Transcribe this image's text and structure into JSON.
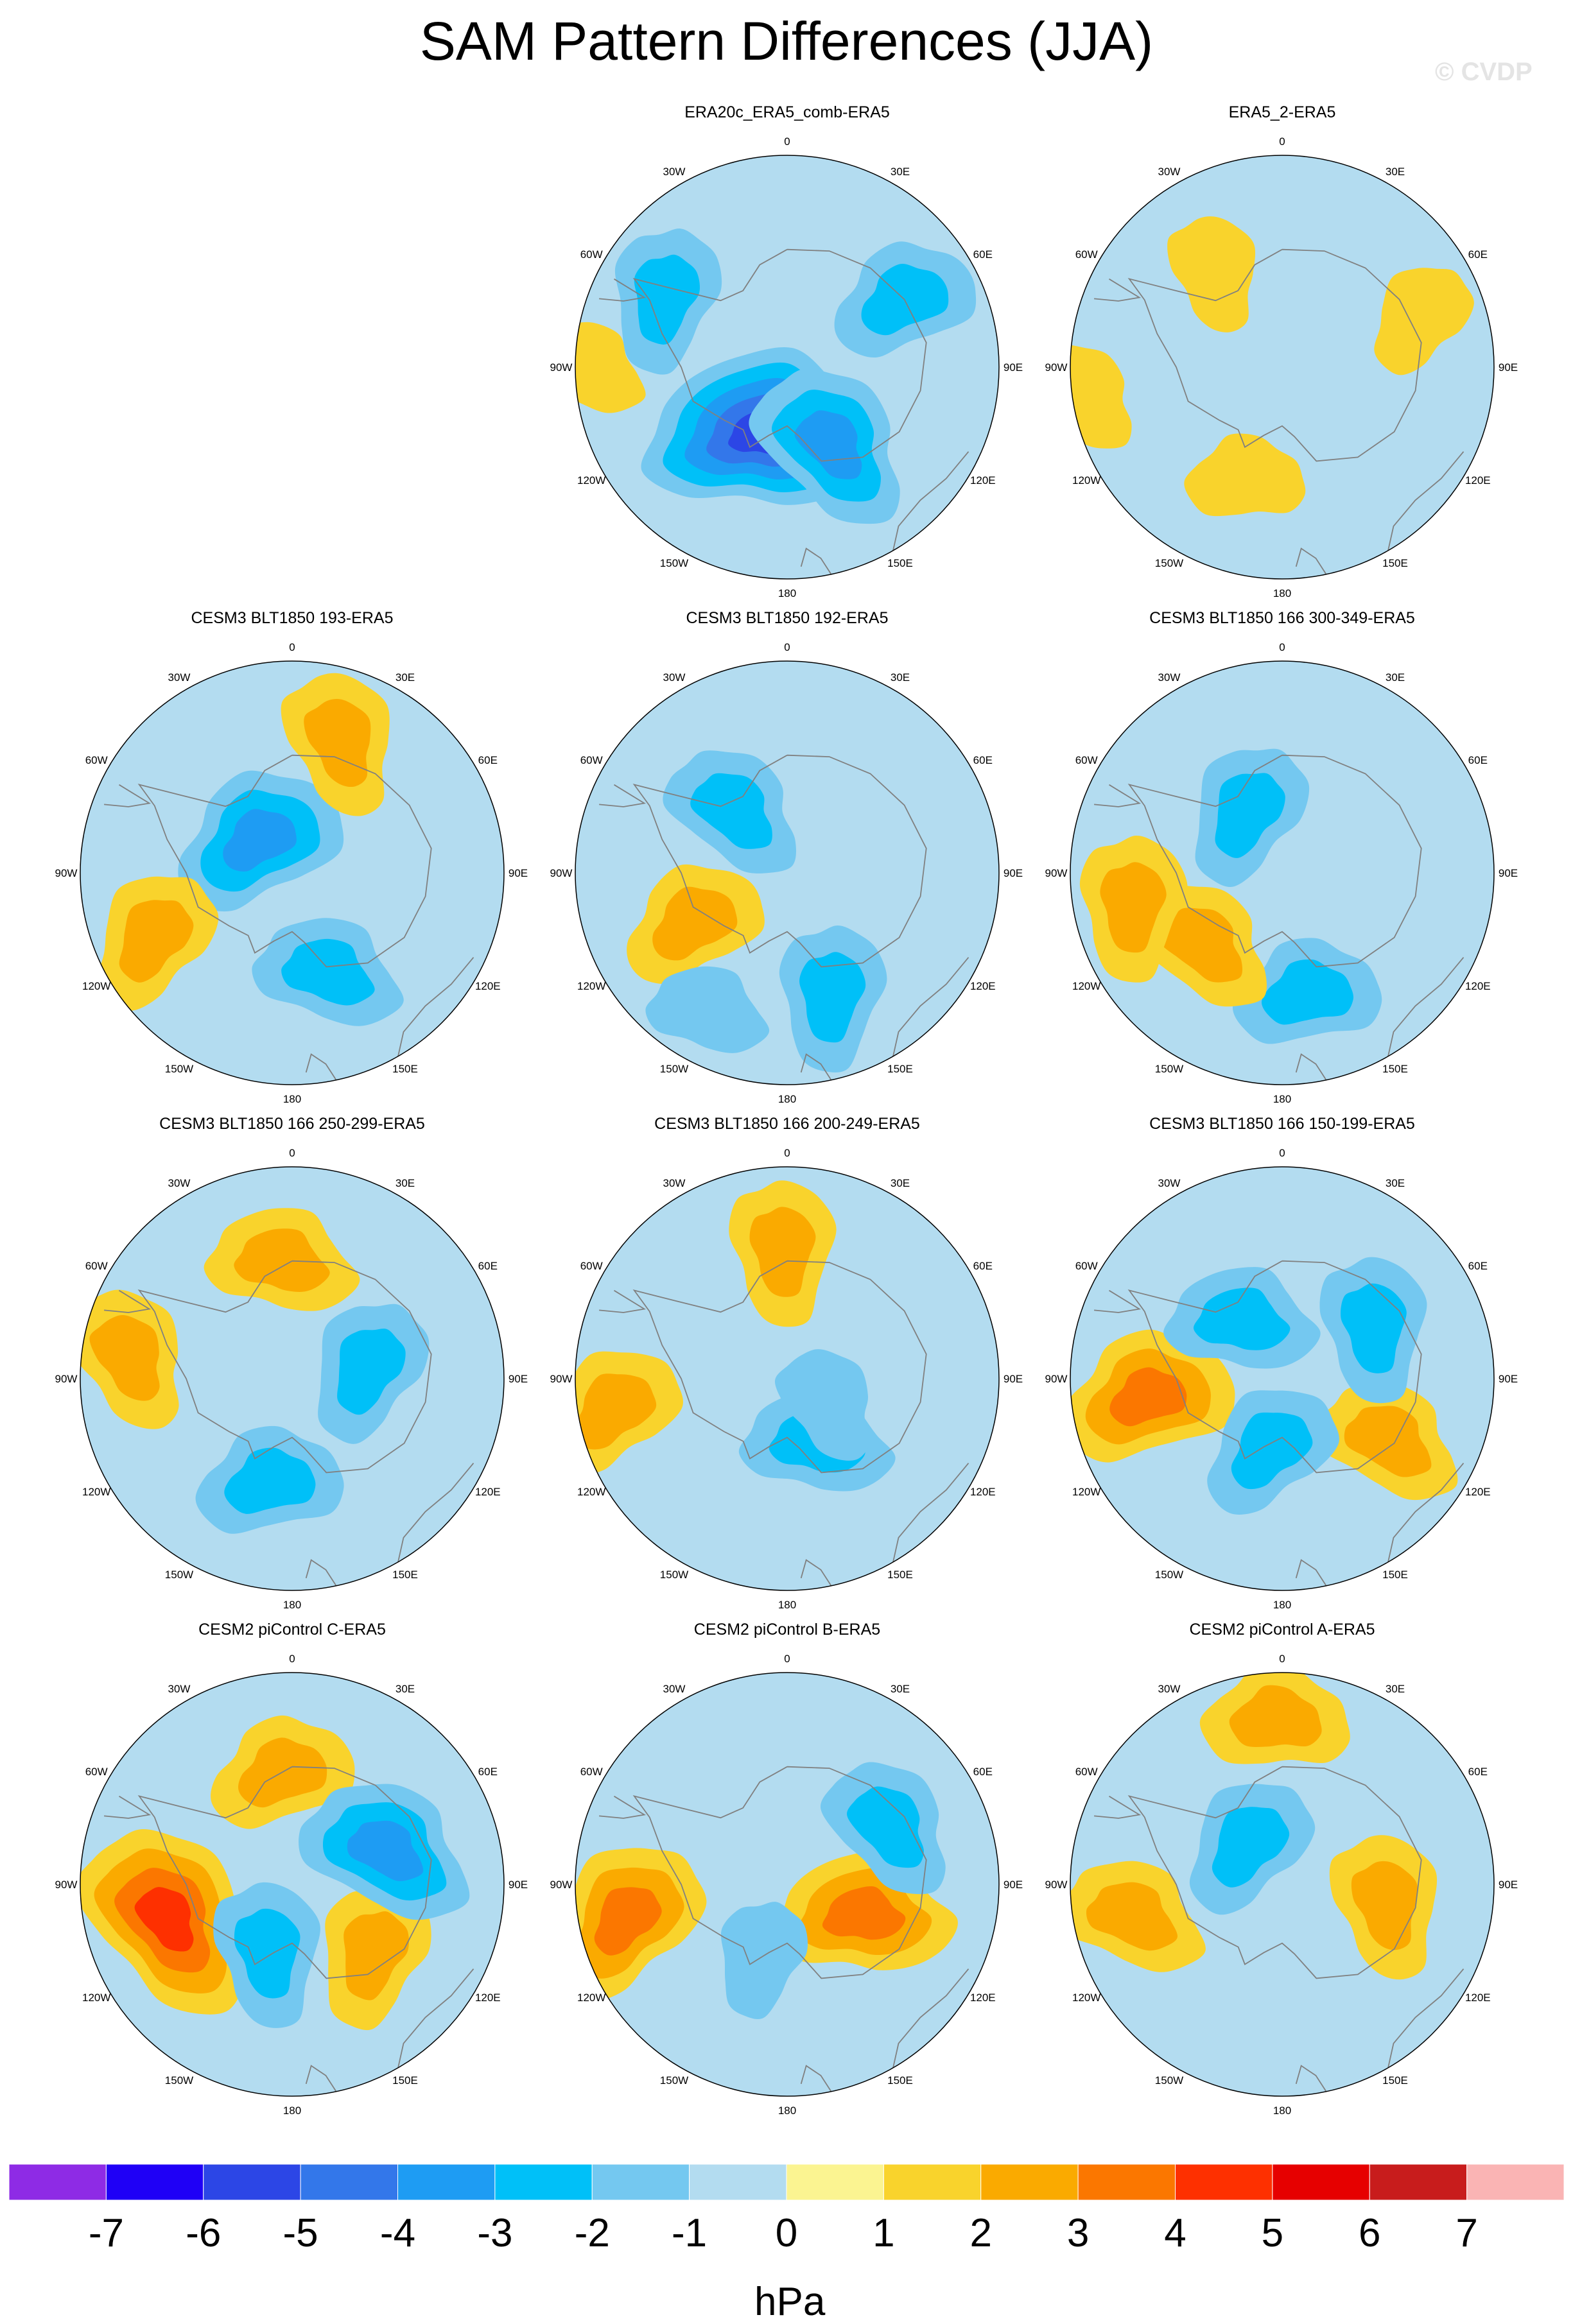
{
  "figure": {
    "title": "SAM Pattern Differences (JJA)",
    "watermark": "© CVDP"
  },
  "map_labels": {
    "lon_0": "0",
    "lon_30e": "30E",
    "lon_60e": "60E",
    "lon_90e": "90E",
    "lon_120e": "120E",
    "lon_150e": "150E",
    "lon_180": "180",
    "lon_150w": "150W",
    "lon_120w": "120W",
    "lon_90w": "90W",
    "lon_60w": "60W",
    "lon_30w": "30W"
  },
  "chart_data": {
    "type": "heatmap",
    "projection": "south polar stereographic",
    "variable": "SAM pattern difference",
    "units": "hPa",
    "colorbar": {
      "levels": [
        -7,
        -6,
        -5,
        -4,
        -3,
        -2,
        -1,
        0,
        1,
        2,
        3,
        4,
        5,
        6,
        7
      ],
      "level_labels": [
        "-7",
        "-6",
        "-5",
        "-4",
        "-3",
        "-2",
        "-1",
        "0",
        "1",
        "2",
        "3",
        "4",
        "5",
        "6",
        "7"
      ],
      "colors": [
        "#8e2be5",
        "#1f00f6",
        "#2c46e6",
        "#3377ea",
        "#1e9cf3",
        "#00c0f8",
        "#74c8f0",
        "#b3dcf0",
        "#fbf491",
        "#f9d32c",
        "#faaa00",
        "#fb7700",
        "#fe3000",
        "#e60000",
        "#c81c1c",
        "#fab4b4"
      ]
    },
    "panels": [
      {
        "title": "ERA20c_ERA5_comb-ERA5",
        "features": [
          {
            "type": "low",
            "lon": 200,
            "colat": 12,
            "value": -5
          },
          {
            "type": "low",
            "lon": 150,
            "colat": 15,
            "value": -3
          },
          {
            "type": "low",
            "lon": 300,
            "colat": 24,
            "value": -2
          },
          {
            "type": "low",
            "lon": 60,
            "colat": 23,
            "value": -2
          },
          {
            "type": "high",
            "lon": 270,
            "colat": 34,
            "value": 1
          }
        ]
      },
      {
        "title": "ERA5_2-ERA5",
        "features": [
          {
            "type": "high",
            "lon": 325,
            "colat": 20,
            "value": 1
          },
          {
            "type": "high",
            "lon": 70,
            "colat": 25,
            "value": 1
          },
          {
            "type": "high",
            "lon": 198,
            "colat": 20,
            "value": 1
          },
          {
            "type": "high",
            "lon": 262,
            "colat": 34,
            "value": 1
          }
        ]
      },
      {
        "title": "CESM3 BLT1850 193-ERA5",
        "features": [
          {
            "type": "low",
            "lon": 315,
            "colat": 8,
            "value": -3
          },
          {
            "type": "low",
            "lon": 160,
            "colat": 18,
            "value": -2
          },
          {
            "type": "high",
            "lon": 20,
            "colat": 24,
            "value": 2
          },
          {
            "type": "high",
            "lon": 245,
            "colat": 26,
            "value": 2
          }
        ]
      },
      {
        "title": "CESM3 BLT1850 192-ERA5",
        "features": [
          {
            "type": "low",
            "lon": 320,
            "colat": 14,
            "value": -2
          },
          {
            "type": "low",
            "lon": 160,
            "colat": 22,
            "value": -2
          },
          {
            "type": "high",
            "lon": 242,
            "colat": 18,
            "value": 2
          },
          {
            "type": "low",
            "lon": 210,
            "colat": 27,
            "value": -1
          }
        ]
      },
      {
        "title": "CESM3 BLT1850 166 300-349-ERA5",
        "features": [
          {
            "type": "low",
            "lon": 330,
            "colat": 12,
            "value": -2
          },
          {
            "type": "low",
            "lon": 168,
            "colat": 21,
            "value": -2
          },
          {
            "type": "high",
            "lon": 228,
            "colat": 18,
            "value": 2
          },
          {
            "type": "high",
            "lon": 258,
            "colat": 26,
            "value": 2
          }
        ]
      },
      {
        "title": "CESM3 BLT1850 166 250-299-ERA5",
        "features": [
          {
            "type": "high",
            "lon": 355,
            "colat": 20,
            "value": 2
          },
          {
            "type": "high",
            "lon": 278,
            "colat": 28,
            "value": 2
          },
          {
            "type": "low",
            "lon": 82,
            "colat": 13,
            "value": -2
          },
          {
            "type": "low",
            "lon": 192,
            "colat": 18,
            "value": -2
          }
        ]
      },
      {
        "title": "CESM3 BLT1850 166 200-249-ERA5",
        "features": [
          {
            "type": "high",
            "lon": 358,
            "colat": 22,
            "value": 2
          },
          {
            "type": "high",
            "lon": 260,
            "colat": 30,
            "value": 2
          },
          {
            "type": "low",
            "lon": 155,
            "colat": 12,
            "value": -2
          },
          {
            "type": "low",
            "lon": 120,
            "colat": 8,
            "value": -1
          }
        ]
      },
      {
        "title": "CESM3 BLT1850 166 150-199-ERA5",
        "features": [
          {
            "type": "high",
            "lon": 262,
            "colat": 23,
            "value": 3
          },
          {
            "type": "high",
            "lon": 120,
            "colat": 21,
            "value": 2
          },
          {
            "type": "low",
            "lon": 60,
            "colat": 18,
            "value": -2
          },
          {
            "type": "low",
            "lon": 190,
            "colat": 12,
            "value": -2
          },
          {
            "type": "low",
            "lon": 325,
            "colat": 12,
            "value": -2
          }
        ]
      },
      {
        "title": "CESM2 piControl C-ERA5",
        "features": [
          {
            "type": "high",
            "lon": 255,
            "colat": 22,
            "value": 4
          },
          {
            "type": "high",
            "lon": 130,
            "colat": 18,
            "value": 2
          },
          {
            "type": "high",
            "lon": 355,
            "colat": 19,
            "value": 2
          },
          {
            "type": "low",
            "lon": 70,
            "colat": 17,
            "value": -3
          },
          {
            "type": "low",
            "lon": 200,
            "colat": 12,
            "value": -2
          }
        ]
      },
      {
        "title": "CESM2 piControl B-ERA5",
        "features": [
          {
            "type": "high",
            "lon": 258,
            "colat": 28,
            "value": 3
          },
          {
            "type": "high",
            "lon": 112,
            "colat": 14,
            "value": 3
          },
          {
            "type": "low",
            "lon": 60,
            "colat": 20,
            "value": -2
          },
          {
            "type": "low",
            "lon": 200,
            "colat": 13,
            "value": -1
          }
        ]
      },
      {
        "title": "CESM2 piControl A-ERA5",
        "features": [
          {
            "type": "high",
            "lon": 258,
            "colat": 26,
            "value": 2
          },
          {
            "type": "high",
            "lon": 100,
            "colat": 18,
            "value": 2
          },
          {
            "type": "low",
            "lon": 320,
            "colat": 9,
            "value": -2
          },
          {
            "type": "high",
            "lon": 358,
            "colat": 28,
            "value": 2
          }
        ]
      }
    ]
  }
}
